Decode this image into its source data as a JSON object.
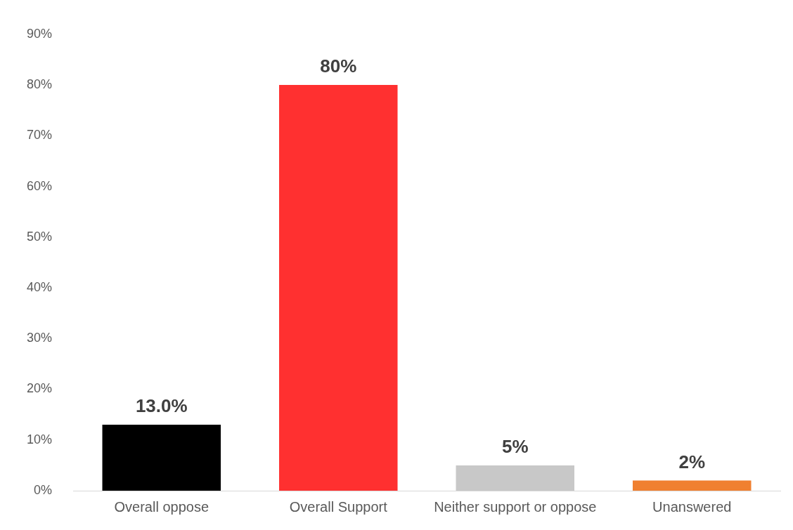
{
  "chart_data": {
    "type": "bar",
    "categories": [
      "Overall oppose",
      "Overall Support",
      "Neither support or oppose",
      "Unanswered"
    ],
    "values": [
      13,
      80,
      5,
      2
    ],
    "colors": [
      "#000000",
      "#ff3030",
      "#c8c8c8",
      "#f08030"
    ],
    "value_labels": [
      "13.0%",
      "80%",
      "5%",
      "2%"
    ],
    "ylim": [
      0,
      90
    ],
    "yticks": [
      {
        "value": 0,
        "label": "0%"
      },
      {
        "value": 10,
        "label": "10%"
      },
      {
        "value": 20,
        "label": "20%"
      },
      {
        "value": 30,
        "label": "30%"
      },
      {
        "value": 40,
        "label": "40%"
      },
      {
        "value": 50,
        "label": "50%"
      },
      {
        "value": 60,
        "label": "60%"
      },
      {
        "value": 70,
        "label": "70%"
      },
      {
        "value": 80,
        "label": "80%"
      },
      {
        "value": 90,
        "label": "90%"
      }
    ],
    "grid": false,
    "legend": false
  }
}
